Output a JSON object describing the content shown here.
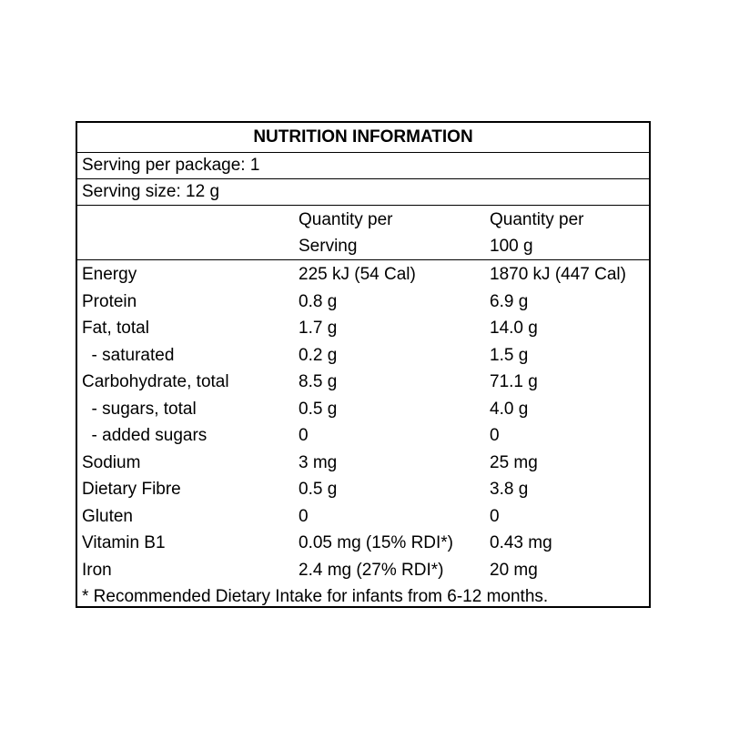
{
  "title": "NUTRITION INFORMATION",
  "serving_per_package": "Serving per package: 1",
  "serving_size": "Serving size: 12 g",
  "columns": {
    "per_serving_line1": "Quantity per",
    "per_serving_line2": "Serving",
    "per_100g_line1": "Quantity per",
    "per_100g_line2": "100 g"
  },
  "rows": [
    {
      "label": "Energy",
      "per_serving": "225 kJ (54 Cal)",
      "per_100g": "1870 kJ (447 Cal)"
    },
    {
      "label": "Protein",
      "per_serving": "0.8 g",
      "per_100g": "6.9 g"
    },
    {
      "label": "Fat, total",
      "per_serving": "1.7 g",
      "per_100g": "14.0 g"
    },
    {
      "label": "  - saturated",
      "per_serving": "0.2 g",
      "per_100g": "1.5 g"
    },
    {
      "label": "Carbohydrate, total",
      "per_serving": "8.5 g",
      "per_100g": "71.1 g"
    },
    {
      "label": "  - sugars, total",
      "per_serving": "0.5 g",
      "per_100g": "4.0 g"
    },
    {
      "label": "  - added sugars",
      "per_serving": "0",
      "per_100g": "0"
    },
    {
      "label": "Sodium",
      "per_serving": "3 mg",
      "per_100g": "25 mg"
    },
    {
      "label": "Dietary Fibre",
      "per_serving": "0.5 g",
      "per_100g": "3.8 g"
    },
    {
      "label": "Gluten",
      "per_serving": "0",
      "per_100g": "0"
    },
    {
      "label": "Vitamin B1",
      "per_serving": "0.05 mg (15% RDI*)",
      "per_100g": "0.43 mg"
    },
    {
      "label": "Iron",
      "per_serving": "2.4 mg (27% RDI*)",
      "per_100g": "20 mg"
    }
  ],
  "footnote": "* Recommended Dietary Intake for infants from 6-12 months."
}
